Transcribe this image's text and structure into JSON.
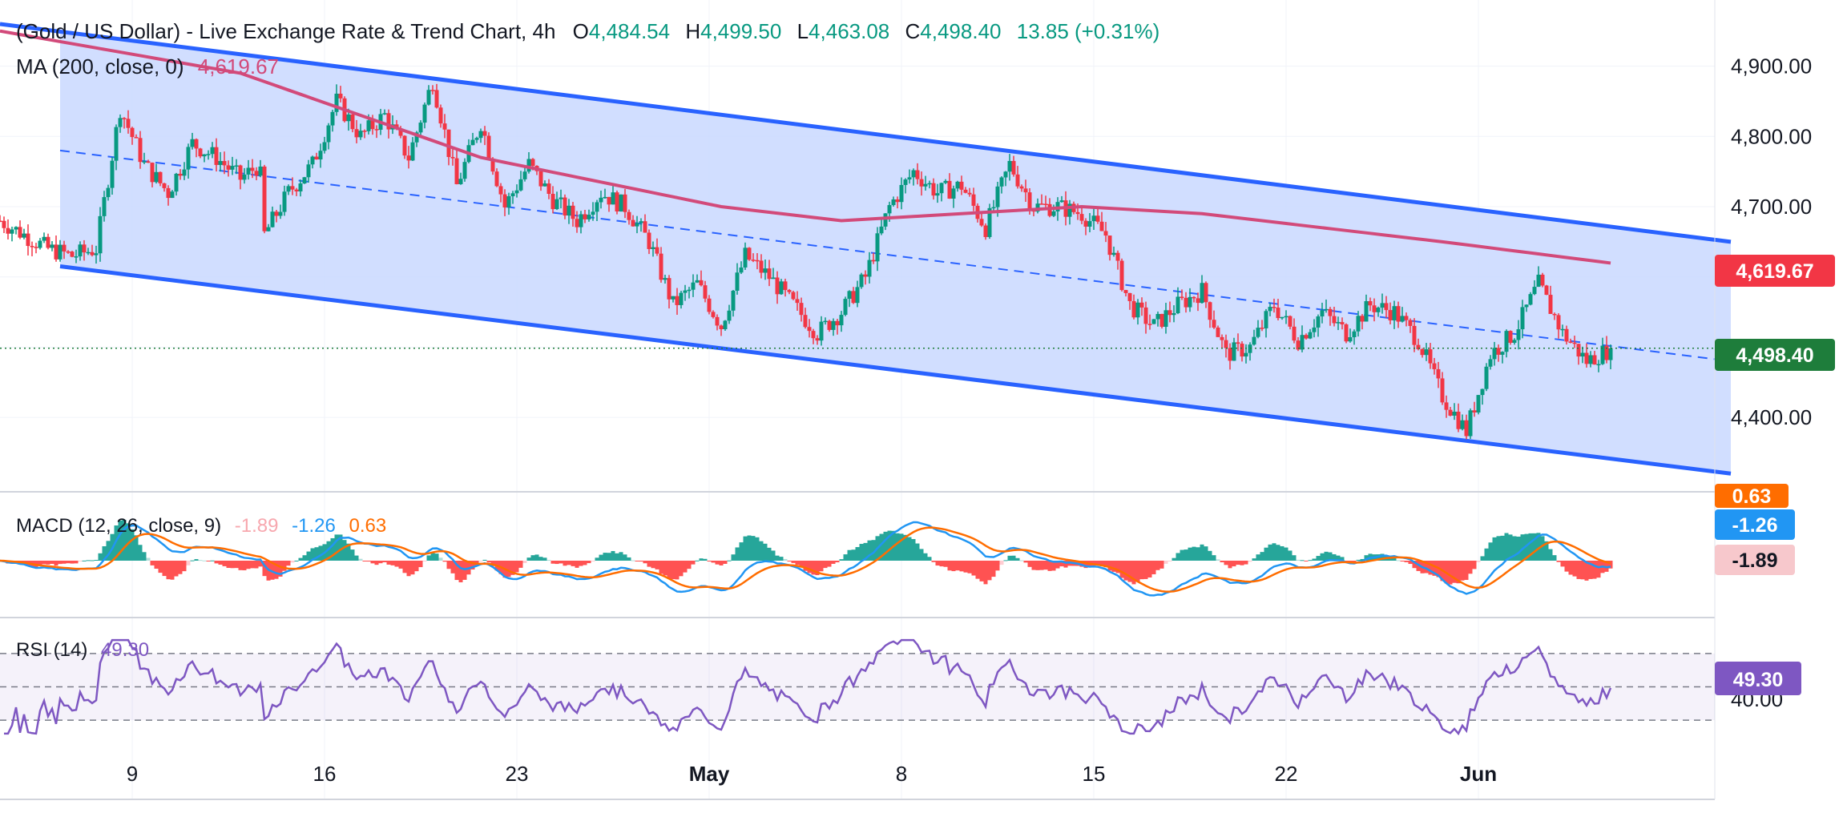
{
  "header": {
    "title": "(Gold / US Dollar) - Live Exchange Rate & Trend Chart, 4h",
    "open_label": "O",
    "open": "4,484.54",
    "high_label": "H",
    "high": "4,499.50",
    "low_label": "L",
    "low": "4,463.08",
    "close_label": "C",
    "close": "4,498.40",
    "change": "13.85 (+0.31%)"
  },
  "ma_legend": {
    "label": "MA (200, close, 0)",
    "value": "4,619.67"
  },
  "macd_legend": {
    "label": "MACD (12, 26, close, 9)",
    "hist": "-1.89",
    "macd": "-1.26",
    "signal": "0.63"
  },
  "rsi_legend": {
    "label": "RSI (14)",
    "value": "49.30"
  },
  "badges": {
    "ma": "4,619.67",
    "price": "4,498.40",
    "macd_signal": "0.63",
    "macd": "-1.26",
    "macd_hist": "-1.89",
    "rsi": "49.30"
  },
  "colors": {
    "up": "#089981",
    "down": "#f23645",
    "ma": "#d24a7a",
    "channel": "#2962ff",
    "channel_fill": "#c9d8ff",
    "macd": "#2196f3",
    "signal": "#ff6d00",
    "rsi": "#7e57c2"
  },
  "chart_data": [
    {
      "type": "candlestick",
      "title": "(Gold / US Dollar) - Live Exchange Rate & Trend Chart, 4h",
      "x_ticks": [
        "9",
        "16",
        "23",
        "May",
        "8",
        "15",
        "22",
        "Jun"
      ],
      "y_ticks": [
        "4,900.00",
        "4,800.00",
        "4,700.00",
        "4,400.00"
      ],
      "ylim": [
        4310,
        4960
      ],
      "last_close": 4498.4,
      "ma200_last": 4619.67,
      "price_path": [
        {
          "d": 0,
          "p": 4680
        },
        {
          "d": 2,
          "p": 4640
        },
        {
          "d": 3,
          "p": 4630
        },
        {
          "d": 4,
          "p": 4640
        },
        {
          "d": 5,
          "p": 4840
        },
        {
          "d": 6,
          "p": 4760
        },
        {
          "d": 7,
          "p": 4720
        },
        {
          "d": 8,
          "p": 4790
        },
        {
          "d": 9,
          "p": 4770
        },
        {
          "d": 10,
          "p": 4740
        },
        {
          "d": 10.8,
          "p": 4760
        },
        {
          "d": 11,
          "p": 4660
        },
        {
          "d": 12,
          "p": 4720
        },
        {
          "d": 13,
          "p": 4760
        },
        {
          "d": 14,
          "p": 4850
        },
        {
          "d": 15,
          "p": 4800
        },
        {
          "d": 16,
          "p": 4830
        },
        {
          "d": 17,
          "p": 4770
        },
        {
          "d": 18,
          "p": 4880
        },
        {
          "d": 19,
          "p": 4730
        },
        {
          "d": 20,
          "p": 4820
        },
        {
          "d": 21,
          "p": 4700
        },
        {
          "d": 22,
          "p": 4760
        },
        {
          "d": 23,
          "p": 4710
        },
        {
          "d": 24,
          "p": 4680
        },
        {
          "d": 25,
          "p": 4720
        },
        {
          "d": 26,
          "p": 4700
        },
        {
          "d": 27,
          "p": 4650
        },
        {
          "d": 28,
          "p": 4560
        },
        {
          "d": 29,
          "p": 4590
        },
        {
          "d": 30,
          "p": 4530
        },
        {
          "d": 31,
          "p": 4630
        },
        {
          "d": 32,
          "p": 4600
        },
        {
          "d": 33,
          "p": 4560
        },
        {
          "d": 34,
          "p": 4520
        },
        {
          "d": 35,
          "p": 4550
        },
        {
          "d": 36,
          "p": 4600
        },
        {
          "d": 37,
          "p": 4700
        },
        {
          "d": 38,
          "p": 4750
        },
        {
          "d": 39,
          "p": 4720
        },
        {
          "d": 40,
          "p": 4730
        },
        {
          "d": 41,
          "p": 4670
        },
        {
          "d": 42,
          "p": 4760
        },
        {
          "d": 43,
          "p": 4700
        },
        {
          "d": 44,
          "p": 4700
        },
        {
          "d": 45,
          "p": 4690
        },
        {
          "d": 46,
          "p": 4660
        },
        {
          "d": 47,
          "p": 4560
        },
        {
          "d": 48,
          "p": 4530
        },
        {
          "d": 49,
          "p": 4560
        },
        {
          "d": 50,
          "p": 4580
        },
        {
          "d": 51,
          "p": 4490
        },
        {
          "d": 52,
          "p": 4500
        },
        {
          "d": 53,
          "p": 4560
        },
        {
          "d": 54,
          "p": 4510
        },
        {
          "d": 55,
          "p": 4550
        },
        {
          "d": 56,
          "p": 4520
        },
        {
          "d": 57,
          "p": 4560
        },
        {
          "d": 58,
          "p": 4550
        },
        {
          "d": 59,
          "p": 4510
        },
        {
          "d": 60,
          "p": 4430
        },
        {
          "d": 61,
          "p": 4380
        },
        {
          "d": 62,
          "p": 4490
        },
        {
          "d": 63,
          "p": 4520
        },
        {
          "d": 64,
          "p": 4590
        },
        {
          "d": 65,
          "p": 4520
        },
        {
          "d": 66,
          "p": 4480
        },
        {
          "d": 67,
          "p": 4498
        }
      ],
      "ma200_path": [
        {
          "d": 0,
          "p": 4950
        },
        {
          "d": 10,
          "p": 4890
        },
        {
          "d": 20,
          "p": 4770
        },
        {
          "d": 30,
          "p": 4700
        },
        {
          "d": 35,
          "p": 4680
        },
        {
          "d": 40,
          "p": 4690
        },
        {
          "d": 45,
          "p": 4700
        },
        {
          "d": 50,
          "p": 4690
        },
        {
          "d": 55,
          "p": 4670
        },
        {
          "d": 60,
          "p": 4650
        },
        {
          "d": 67,
          "p": 4619.67
        }
      ],
      "channel": {
        "upper": [
          {
            "d": 0,
            "p": 4960
          },
          {
            "d": 72,
            "p": 4650
          }
        ],
        "lower": [
          {
            "d": 2.5,
            "p": 4615
          },
          {
            "d": 72,
            "p": 4320
          }
        ],
        "mid": [
          {
            "d": 2.5,
            "p": 4780
          },
          {
            "d": 72,
            "p": 4480
          }
        ]
      }
    },
    {
      "type": "line",
      "title": "MACD (12, 26, close, 9)",
      "series": [
        {
          "name": "MACD",
          "last": -1.26
        },
        {
          "name": "Signal",
          "last": 0.63
        },
        {
          "name": "Histogram",
          "last": -1.89
        }
      ]
    },
    {
      "type": "line",
      "title": "RSI (14)",
      "y_ticks": [
        "40.00"
      ],
      "levels": [
        70,
        50,
        30
      ],
      "series": [
        {
          "name": "RSI",
          "last": 49.3
        }
      ]
    }
  ]
}
